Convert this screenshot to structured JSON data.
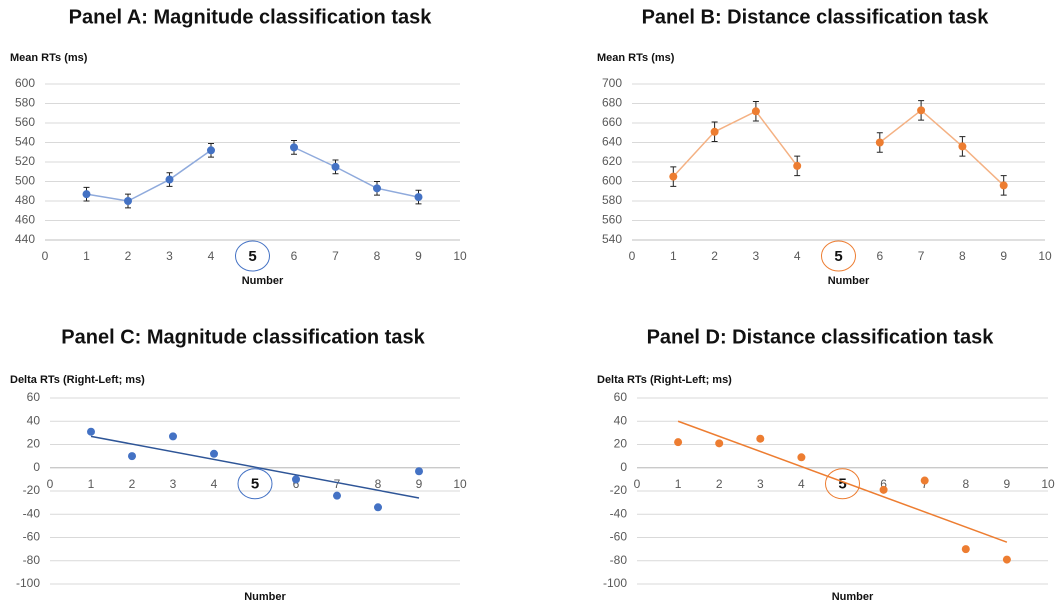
{
  "chart_data": [
    {
      "type": "line",
      "title": "Panel A: Magnitude classification task",
      "y_label": "Mean RTs (ms)",
      "x_label": "Number",
      "x": [
        1,
        2,
        3,
        4,
        5,
        6,
        7,
        8,
        9
      ],
      "values": [
        487,
        480,
        502,
        532,
        null,
        535,
        515,
        493,
        484
      ],
      "errors": [
        7,
        7,
        7,
        7,
        null,
        7,
        7,
        7,
        7
      ],
      "color": "#4472c4",
      "line_color": "#8faadc",
      "xlim": [
        0,
        10
      ],
      "xticks": [
        0,
        1,
        2,
        3,
        4,
        5,
        6,
        7,
        8,
        9,
        10
      ],
      "ylim": [
        440,
        600
      ],
      "yticks": [
        440,
        460,
        480,
        500,
        520,
        540,
        560,
        580,
        600
      ],
      "grid": true
    },
    {
      "type": "line",
      "title": "Panel B: Distance classification task",
      "y_label": "Mean RTs (ms)",
      "x_label": "Number",
      "x": [
        1,
        2,
        3,
        4,
        5,
        6,
        7,
        8,
        9
      ],
      "values": [
        605,
        651,
        672,
        616,
        null,
        640,
        673,
        636,
        596
      ],
      "errors": [
        10,
        10,
        10,
        10,
        null,
        10,
        10,
        10,
        10
      ],
      "color": "#ed7d31",
      "line_color": "#f4b183",
      "xlim": [
        0,
        10
      ],
      "xticks": [
        0,
        1,
        2,
        3,
        4,
        5,
        6,
        7,
        8,
        9,
        10
      ],
      "ylim": [
        540,
        700
      ],
      "yticks": [
        540,
        560,
        580,
        600,
        620,
        640,
        660,
        680,
        700
      ],
      "grid": true
    },
    {
      "type": "scatter",
      "title": "Panel C: Magnitude classification task",
      "y_label": "Delta RTs (Right-Left; ms)",
      "x_label": "Number",
      "x": [
        1,
        2,
        3,
        4,
        6,
        7,
        8,
        9
      ],
      "values": [
        31,
        10,
        27,
        12,
        -10,
        -24,
        -34,
        -3
      ],
      "trendline": {
        "x": [
          1,
          9
        ],
        "values": [
          27,
          -26
        ]
      },
      "color": "#4472c4",
      "line_color": "#2e5597",
      "xlim": [
        0,
        10
      ],
      "xticks": [
        0,
        1,
        2,
        3,
        4,
        5,
        6,
        7,
        8,
        9,
        10
      ],
      "ylim": [
        -100,
        60
      ],
      "yticks": [
        -100,
        -80,
        -60,
        -40,
        -20,
        0,
        20,
        40,
        60
      ],
      "grid": true
    },
    {
      "type": "scatter",
      "title": "Panel D: Distance classification task",
      "y_label": "Delta RTs (Right-Left; ms)",
      "x_label": "Number",
      "x": [
        1,
        2,
        3,
        4,
        6,
        7,
        8,
        9
      ],
      "values": [
        22,
        21,
        25,
        9,
        -19,
        -11,
        -70,
        -79
      ],
      "trendline": {
        "x": [
          1,
          9
        ],
        "values": [
          40,
          -64
        ]
      },
      "color": "#ed7d31",
      "line_color": "#ed7d31",
      "xlim": [
        0,
        10
      ],
      "xticks": [
        0,
        1,
        2,
        3,
        4,
        5,
        6,
        7,
        8,
        9,
        10
      ],
      "ylim": [
        -100,
        60
      ],
      "yticks": [
        -100,
        -80,
        -60,
        -40,
        -20,
        0,
        20,
        40,
        60
      ],
      "grid": true
    }
  ]
}
